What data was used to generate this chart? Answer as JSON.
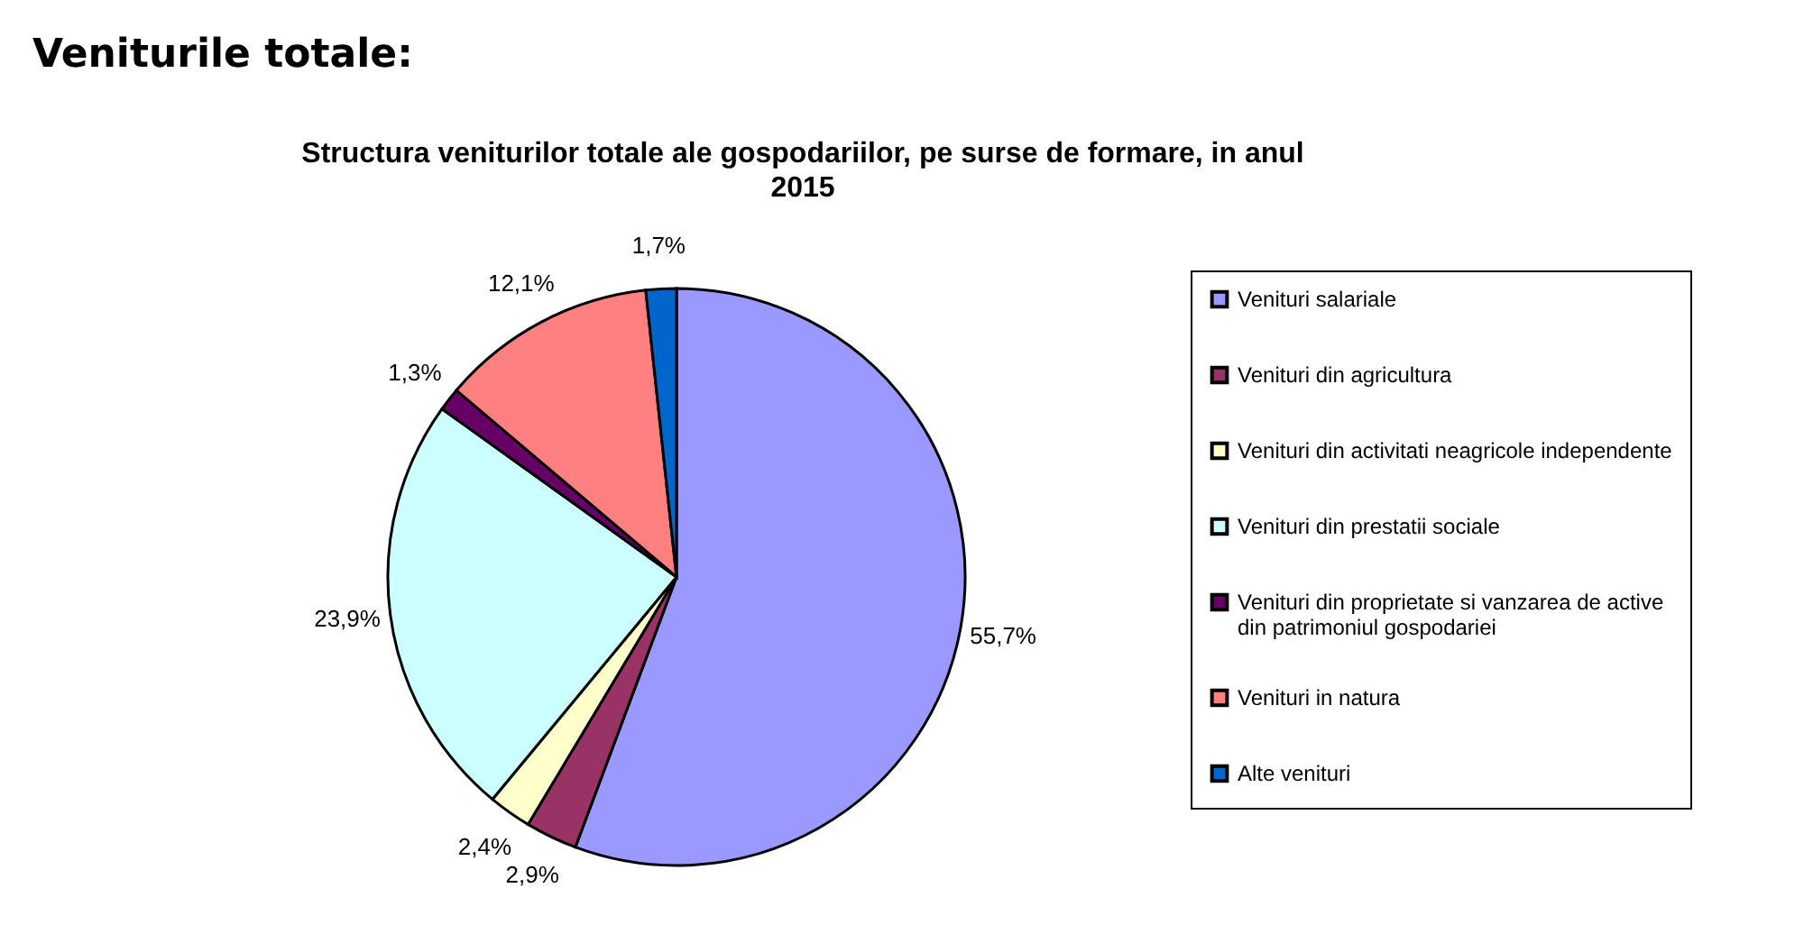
{
  "chart_data": {
    "type": "pie",
    "title": "Veniturile totale:",
    "subtitle": "Structura veniturilor totale ale gospodariilor, pe surse de formare, in anul  2015",
    "categories": [
      "Venituri salariale",
      "Venituri din agricultura",
      "Venituri din activitati neagricole independente",
      "Venituri din prestatii sociale",
      "Venituri din proprietate si vanzarea de active din patrimoniul gospodariei",
      "Venituri in natura",
      "Alte venituri"
    ],
    "values": [
      55.7,
      2.9,
      2.4,
      23.9,
      1.3,
      12.1,
      1.7
    ],
    "value_labels": [
      "55,7%",
      "2,9%",
      "2,4%",
      "23,9%",
      "1,3%",
      "12,1%",
      "1,7%"
    ],
    "colors": [
      "#9999ff",
      "#993366",
      "#ffffcc",
      "#ccffff",
      "#660066",
      "#ff8080",
      "#0066cc"
    ],
    "legend": "right"
  }
}
